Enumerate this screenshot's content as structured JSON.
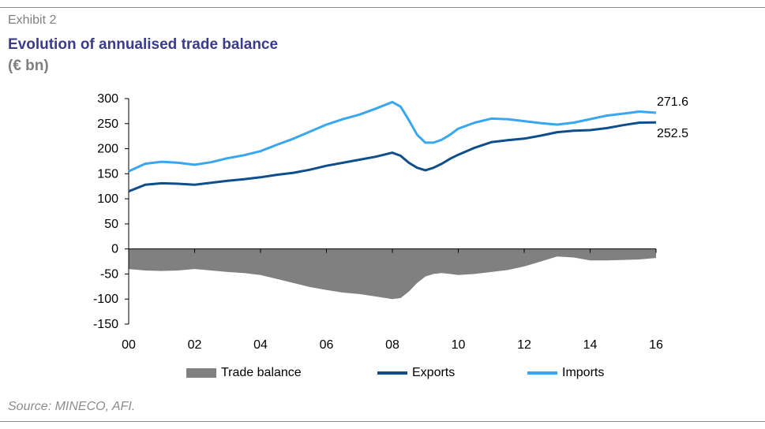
{
  "header": {
    "exhibit": "Exhibit 2",
    "title": "Evolution of annualised trade balance",
    "subtitle": "(€ bn)"
  },
  "footer": {
    "source": "Source: MINECO, AFI."
  },
  "colors": {
    "trade_balance": "#808080",
    "exports": "#0f4e8c",
    "imports": "#39a6f0",
    "axis": "#000000"
  },
  "chart_data": {
    "type": "line",
    "x": [
      2000,
      2000.5,
      2001,
      2001.5,
      2002,
      2002.5,
      2003,
      2003.5,
      2004,
      2004.5,
      2005,
      2005.5,
      2006,
      2006.5,
      2007,
      2007.5,
      2008,
      2008.25,
      2008.5,
      2008.75,
      2009,
      2009.25,
      2009.5,
      2009.75,
      2010,
      2010.5,
      2011,
      2011.5,
      2012,
      2012.5,
      2013,
      2013.5,
      2014,
      2014.5,
      2015,
      2015.5,
      2016
    ],
    "xticks": [
      2000,
      2002,
      2004,
      2006,
      2008,
      2010,
      2012,
      2014,
      2016
    ],
    "xtick_labels": [
      "00",
      "02",
      "04",
      "06",
      "08",
      "10",
      "12",
      "14",
      "16"
    ],
    "ylim": [
      -150,
      300
    ],
    "yticks": [
      -150,
      -100,
      -50,
      0,
      50,
      100,
      150,
      200,
      250,
      300
    ],
    "grid": false,
    "legend": "bottom",
    "series": [
      {
        "name": "Trade balance",
        "kind": "area",
        "values": [
          -40,
          -43,
          -44,
          -43,
          -40,
          -43,
          -46,
          -48,
          -52,
          -60,
          -68,
          -76,
          -82,
          -87,
          -90,
          -95,
          -100,
          -98,
          -85,
          -68,
          -55,
          -50,
          -48,
          -50,
          -52,
          -50,
          -46,
          -42,
          -35,
          -25,
          -15,
          -17,
          -23,
          -23,
          -22,
          -21,
          -18
        ]
      },
      {
        "name": "Exports",
        "kind": "line",
        "values": [
          115,
          128,
          131,
          130,
          128,
          132,
          136,
          139,
          143,
          148,
          152,
          158,
          166,
          172,
          178,
          184,
          192,
          186,
          172,
          162,
          157,
          162,
          170,
          180,
          188,
          202,
          213,
          217,
          220,
          226,
          233,
          236,
          237,
          241,
          247,
          252,
          252.5
        ]
      },
      {
        "name": "Imports",
        "kind": "line",
        "values": [
          155,
          170,
          174,
          172,
          168,
          173,
          181,
          187,
          195,
          208,
          220,
          234,
          248,
          259,
          268,
          280,
          293,
          284,
          257,
          228,
          212,
          212,
          218,
          228,
          240,
          252,
          260,
          259,
          255,
          251,
          248,
          252,
          259,
          266,
          270,
          274,
          271.6
        ]
      }
    ],
    "end_labels": {
      "imports": "271.6",
      "exports": "252.5"
    }
  }
}
